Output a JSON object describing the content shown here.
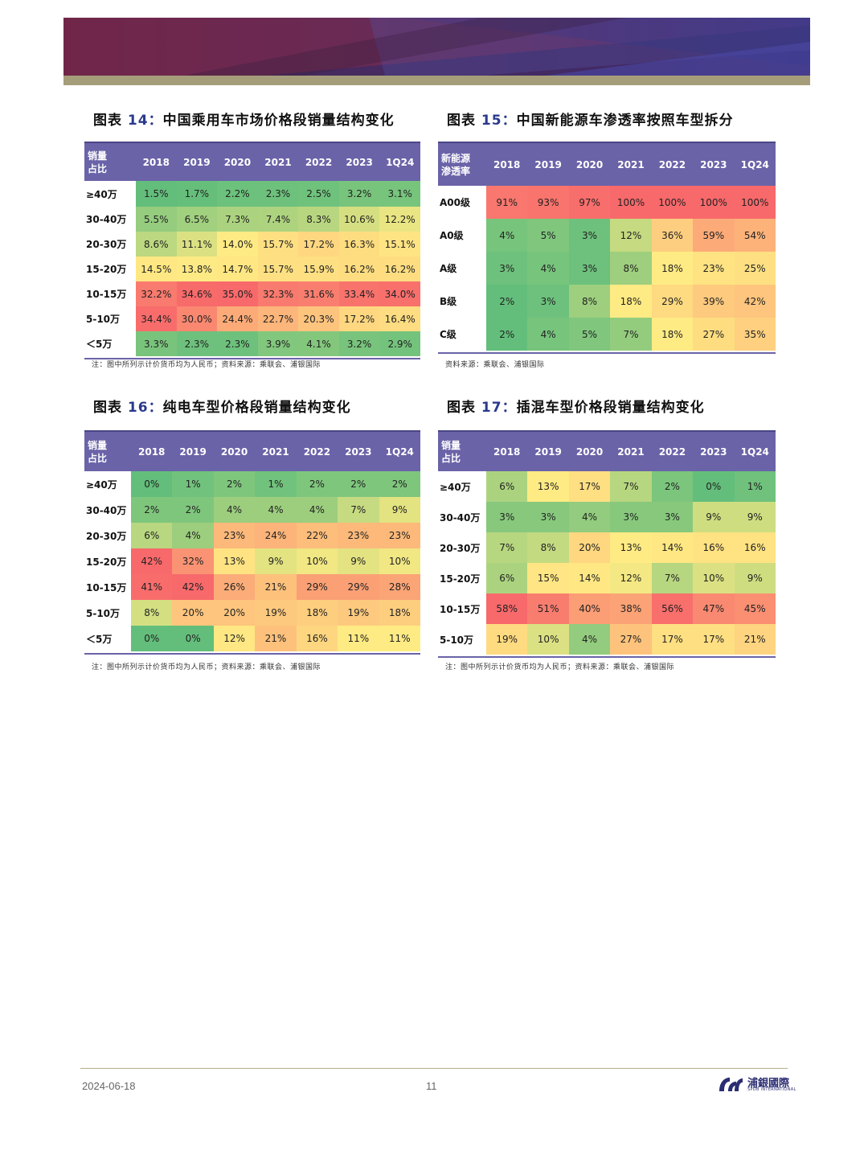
{
  "footer": {
    "date": "2024-06-18",
    "page": "11",
    "logo_text": "浦銀國際",
    "logo_sub": "SPDB INTERNATIONAL"
  },
  "colors": {
    "header_bg": "#6a63a8",
    "scale_low": "#63be7b",
    "scale_mid": "#ffeb84",
    "scale_high": "#f8696b"
  },
  "figures": [
    {
      "label": "图表",
      "num": "14：",
      "title": "中国乘用车市场价格段销量结构变化",
      "corner": [
        "销量",
        "占比"
      ],
      "columns": [
        "2018",
        "2019",
        "2020",
        "2021",
        "2022",
        "2023",
        "1Q24"
      ],
      "rows": [
        {
          "label": "≥40万",
          "values": [
            "1.5%",
            "1.7%",
            "2.2%",
            "2.3%",
            "2.5%",
            "3.2%",
            "3.1%"
          ]
        },
        {
          "label": "30-40万",
          "values": [
            "5.5%",
            "6.5%",
            "7.3%",
            "7.4%",
            "8.3%",
            "10.6%",
            "12.2%"
          ]
        },
        {
          "label": "20-30万",
          "values": [
            "8.6%",
            "11.1%",
            "14.0%",
            "15.7%",
            "17.2%",
            "16.3%",
            "15.1%"
          ]
        },
        {
          "label": "15-20万",
          "values": [
            "14.5%",
            "13.8%",
            "14.7%",
            "15.7%",
            "15.9%",
            "16.2%",
            "16.2%"
          ]
        },
        {
          "label": "10-15万",
          "values": [
            "32.2%",
            "34.6%",
            "35.0%",
            "32.3%",
            "31.6%",
            "33.4%",
            "34.0%"
          ]
        },
        {
          "label": "5-10万",
          "values": [
            "34.4%",
            "30.0%",
            "24.4%",
            "22.7%",
            "20.3%",
            "17.2%",
            "16.4%"
          ]
        },
        {
          "label": "＜5万",
          "values": [
            "3.3%",
            "2.3%",
            "2.3%",
            "3.9%",
            "4.1%",
            "3.2%",
            "2.9%"
          ]
        }
      ],
      "note": "注：图中所列示计价货币均为人民币；资料来源：乘联会、浦银国际"
    },
    {
      "label": "图表",
      "num": "15：",
      "title": "中国新能源车渗透率按照车型拆分",
      "corner": [
        "新能源",
        "渗透率"
      ],
      "columns": [
        "2018",
        "2019",
        "2020",
        "2021",
        "2022",
        "2023",
        "1Q24"
      ],
      "rows": [
        {
          "label": "A00级",
          "values": [
            "91%",
            "93%",
            "97%",
            "100%",
            "100%",
            "100%",
            "100%"
          ]
        },
        {
          "label": "A0级",
          "values": [
            "4%",
            "5%",
            "3%",
            "12%",
            "36%",
            "59%",
            "54%"
          ]
        },
        {
          "label": "A级",
          "values": [
            "3%",
            "4%",
            "3%",
            "8%",
            "18%",
            "23%",
            "25%"
          ]
        },
        {
          "label": "B级",
          "values": [
            "2%",
            "3%",
            "8%",
            "18%",
            "29%",
            "39%",
            "42%"
          ]
        },
        {
          "label": "C级",
          "values": [
            "2%",
            "4%",
            "5%",
            "7%",
            "18%",
            "27%",
            "35%"
          ]
        }
      ],
      "note": "资料来源：乘联会、浦银国际"
    },
    {
      "label": "图表",
      "num": "16：",
      "title": "纯电车型价格段销量结构变化",
      "corner": [
        "销量",
        "占比"
      ],
      "columns": [
        "2018",
        "2019",
        "2020",
        "2021",
        "2022",
        "2023",
        "1Q24"
      ],
      "rows": [
        {
          "label": "≥40万",
          "values": [
            "0%",
            "1%",
            "2%",
            "1%",
            "2%",
            "2%",
            "2%"
          ]
        },
        {
          "label": "30-40万",
          "values": [
            "2%",
            "2%",
            "4%",
            "4%",
            "4%",
            "7%",
            "9%"
          ]
        },
        {
          "label": "20-30万",
          "values": [
            "6%",
            "4%",
            "23%",
            "24%",
            "22%",
            "23%",
            "23%"
          ]
        },
        {
          "label": "15-20万",
          "values": [
            "42%",
            "32%",
            "13%",
            "9%",
            "10%",
            "9%",
            "10%"
          ]
        },
        {
          "label": "10-15万",
          "values": [
            "41%",
            "42%",
            "26%",
            "21%",
            "29%",
            "29%",
            "28%"
          ]
        },
        {
          "label": "5-10万",
          "values": [
            "8%",
            "20%",
            "20%",
            "19%",
            "18%",
            "19%",
            "18%"
          ]
        },
        {
          "label": "＜5万",
          "values": [
            "0%",
            "0%",
            "12%",
            "21%",
            "16%",
            "11%",
            "11%"
          ]
        }
      ],
      "note": "注：图中所列示计价货币均为人民币；资料来源：乘联会、浦银国际"
    },
    {
      "label": "图表",
      "num": "17：",
      "title": "插混车型价格段销量结构变化",
      "corner": [
        "销量",
        "占比"
      ],
      "columns": [
        "2018",
        "2019",
        "2020",
        "2021",
        "2022",
        "2023",
        "1Q24"
      ],
      "rows": [
        {
          "label": "≥40万",
          "values": [
            "6%",
            "13%",
            "17%",
            "7%",
            "2%",
            "0%",
            "1%"
          ]
        },
        {
          "label": "30-40万",
          "values": [
            "3%",
            "3%",
            "4%",
            "3%",
            "3%",
            "9%",
            "9%"
          ]
        },
        {
          "label": "20-30万",
          "values": [
            "7%",
            "8%",
            "20%",
            "13%",
            "14%",
            "16%",
            "16%"
          ]
        },
        {
          "label": "15-20万",
          "values": [
            "6%",
            "15%",
            "14%",
            "12%",
            "7%",
            "10%",
            "9%"
          ]
        },
        {
          "label": "10-15万",
          "values": [
            "58%",
            "51%",
            "40%",
            "38%",
            "56%",
            "47%",
            "45%"
          ]
        },
        {
          "label": "5-10万",
          "values": [
            "19%",
            "10%",
            "4%",
            "27%",
            "17%",
            "17%",
            "21%"
          ]
        }
      ],
      "note": "注：图中所列示计价货币均为人民币；资料来源：乘联会、浦银国际"
    }
  ]
}
